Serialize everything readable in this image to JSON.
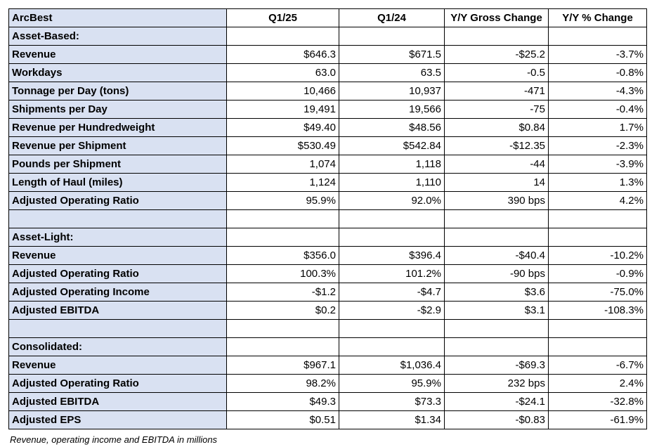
{
  "table": {
    "header": [
      "ArcBest",
      "Q1/25",
      "Q1/24",
      "Y/Y Gross Change",
      "Y/Y % Change"
    ],
    "rows": [
      {
        "type": "section",
        "label": "Asset-Based:"
      },
      {
        "type": "data",
        "cells": [
          "Revenue",
          "$646.3",
          "$671.5",
          "-$25.2",
          "-3.7%"
        ]
      },
      {
        "type": "data",
        "cells": [
          "Workdays",
          "63.0",
          "63.5",
          "-0.5",
          "-0.8%"
        ]
      },
      {
        "type": "data",
        "cells": [
          "Tonnage per Day (tons)",
          "10,466",
          "10,937",
          "-471",
          "-4.3%"
        ]
      },
      {
        "type": "data",
        "cells": [
          "Shipments per Day",
          "19,491",
          "19,566",
          "-75",
          "-0.4%"
        ]
      },
      {
        "type": "data",
        "cells": [
          "Revenue per Hundredweight",
          "$49.40",
          "$48.56",
          "$0.84",
          "1.7%"
        ]
      },
      {
        "type": "data",
        "cells": [
          "Revenue per Shipment",
          "$530.49",
          "$542.84",
          "-$12.35",
          "-2.3%"
        ]
      },
      {
        "type": "data",
        "cells": [
          "Pounds per Shipment",
          "1,074",
          "1,118",
          "-44",
          "-3.9%"
        ]
      },
      {
        "type": "data",
        "cells": [
          "Length of Haul (miles)",
          "1,124",
          "1,110",
          "14",
          "1.3%"
        ]
      },
      {
        "type": "data",
        "cells": [
          "Adjusted Operating Ratio",
          "95.9%",
          "92.0%",
          "390 bps",
          "4.2%"
        ]
      },
      {
        "type": "blank"
      },
      {
        "type": "section",
        "label": "Asset-Light:"
      },
      {
        "type": "data",
        "cells": [
          "Revenue",
          "$356.0",
          "$396.4",
          "-$40.4",
          "-10.2%"
        ]
      },
      {
        "type": "data",
        "cells": [
          "Adjusted Operating Ratio",
          "100.3%",
          "101.2%",
          "-90 bps",
          "-0.9%"
        ]
      },
      {
        "type": "data",
        "cells": [
          "Adjusted Operating Income",
          "-$1.2",
          "-$4.7",
          "$3.6",
          "-75.0%"
        ]
      },
      {
        "type": "data",
        "cells": [
          "Adjusted EBITDA",
          "$0.2",
          "-$2.9",
          "$3.1",
          "-108.3%"
        ]
      },
      {
        "type": "blank"
      },
      {
        "type": "section",
        "label": "Consolidated:"
      },
      {
        "type": "data",
        "cells": [
          "Revenue",
          "$967.1",
          "$1,036.4",
          "-$69.3",
          "-6.7%"
        ]
      },
      {
        "type": "data",
        "cells": [
          "Adjusted Operating Ratio",
          "98.2%",
          "95.9%",
          "232 bps",
          "2.4%"
        ]
      },
      {
        "type": "data",
        "cells": [
          "Adjusted EBITDA",
          "$49.3",
          "$73.3",
          "-$24.1",
          "-32.8%"
        ]
      },
      {
        "type": "data",
        "cells": [
          "Adjusted EPS",
          "$0.51",
          "$1.34",
          "-$0.83",
          "-61.9%"
        ]
      }
    ]
  },
  "footnote": "Revenue, operating income and EBITDA in millions",
  "colors": {
    "label_fill": "#d9e1f2",
    "border": "#000000"
  }
}
